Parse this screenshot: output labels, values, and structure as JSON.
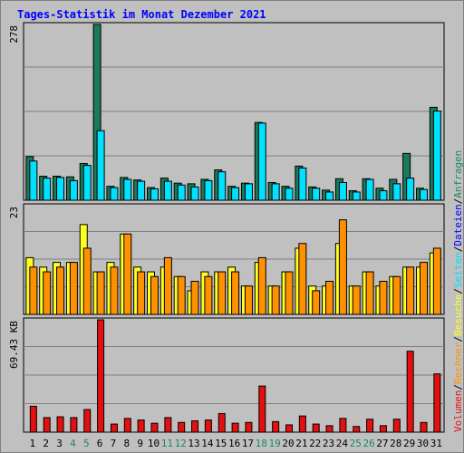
{
  "title": "Tages-Statistik im Monat Dezember 2021",
  "colors": {
    "background": "#c0c0c0",
    "panel": "#c0c0c0",
    "grid": "#808080",
    "hits": "#1b7a5a",
    "files": "#00e0ff",
    "visits": "#ffff20",
    "sites": "#ff9000",
    "kbytes": "#e41010",
    "title": "#0000ff",
    "weekend_label": "#1b8a5a",
    "weekday_label": "#000000"
  },
  "chart_data": [
    {
      "type": "bar",
      "name": "hits-files",
      "ymax_label": "278",
      "ylim": [
        0,
        278
      ],
      "categories": [
        "1",
        "2",
        "3",
        "4",
        "5",
        "6",
        "7",
        "8",
        "9",
        "10",
        "11",
        "12",
        "13",
        "14",
        "15",
        "16",
        "17",
        "18",
        "19",
        "20",
        "21",
        "22",
        "23",
        "24",
        "25",
        "26",
        "27",
        "28",
        "29",
        "30",
        "31"
      ],
      "weekend_days": [
        "4",
        "5",
        "11",
        "12",
        "18",
        "19",
        "25",
        "26"
      ],
      "series": [
        {
          "name": "Anfragen",
          "values": [
            69,
            38,
            38,
            37,
            58,
            278,
            22,
            36,
            32,
            20,
            35,
            27,
            26,
            33,
            48,
            22,
            27,
            123,
            28,
            22,
            54,
            21,
            16,
            34,
            15,
            34,
            19,
            33,
            74,
            19,
            147
          ]
        },
        {
          "name": "Dateien",
          "values": [
            62,
            35,
            36,
            31,
            55,
            110,
            20,
            33,
            30,
            18,
            30,
            24,
            21,
            31,
            45,
            20,
            26,
            122,
            26,
            19,
            51,
            19,
            13,
            28,
            13,
            33,
            15,
            26,
            35,
            17,
            141
          ]
        }
      ],
      "legend": [
        "Anfragen",
        "Dateien"
      ]
    },
    {
      "type": "bar",
      "name": "visits-sites",
      "ymax_label": "23",
      "ylim": [
        0,
        23
      ],
      "categories": [
        "1",
        "2",
        "3",
        "4",
        "5",
        "6",
        "7",
        "8",
        "9",
        "10",
        "11",
        "12",
        "13",
        "14",
        "15",
        "16",
        "17",
        "18",
        "19",
        "20",
        "21",
        "22",
        "23",
        "24",
        "25",
        "26",
        "27",
        "28",
        "29",
        "30",
        "31"
      ],
      "series": [
        {
          "name": "Besuche",
          "values": [
            12,
            10,
            11,
            11,
            19,
            9,
            11,
            17,
            10,
            9,
            10,
            8,
            5,
            9,
            9,
            10,
            6,
            11,
            6,
            9,
            14,
            6,
            6,
            15,
            6,
            9,
            6,
            8,
            10,
            10,
            13
          ]
        },
        {
          "name": "Seiten",
          "values": [
            10,
            9,
            10,
            11,
            14,
            9,
            10,
            17,
            9,
            8,
            12,
            8,
            7,
            8,
            9,
            9,
            6,
            12,
            6,
            9,
            15,
            5,
            7,
            20,
            6,
            9,
            7,
            8,
            10,
            11,
            14
          ]
        }
      ],
      "legend": [
        "Besuche",
        "Seiten"
      ]
    },
    {
      "type": "bar",
      "name": "kbytes",
      "ymax_label": "69.43 KB",
      "ylim": [
        0,
        69.43
      ],
      "categories": [
        "1",
        "2",
        "3",
        "4",
        "5",
        "6",
        "7",
        "8",
        "9",
        "10",
        "11",
        "12",
        "13",
        "14",
        "15",
        "16",
        "17",
        "18",
        "19",
        "20",
        "21",
        "22",
        "23",
        "24",
        "25",
        "26",
        "27",
        "28",
        "29",
        "30",
        "31"
      ],
      "series": [
        {
          "name": "Volumen",
          "values": [
            16,
            9,
            9.5,
            9,
            14,
            69.43,
            5,
            8.5,
            7.5,
            5.5,
            9,
            6,
            7,
            7.5,
            11.5,
            5.5,
            6,
            28.5,
            6.5,
            4.5,
            10,
            5,
            4,
            8.5,
            3.5,
            8,
            4,
            8,
            50,
            6,
            36
          ]
        }
      ],
      "legend": [
        "Volumen"
      ]
    }
  ],
  "right_legend": [
    {
      "text": "Volumen",
      "color": "#e41010"
    },
    {
      "text": "/",
      "color": "#000000"
    },
    {
      "text": "Rechner",
      "color": "#ff9000"
    },
    {
      "text": "/",
      "color": "#000000"
    },
    {
      "text": "Besuche",
      "color": "#ffff20"
    },
    {
      "text": "/",
      "color": "#000000"
    },
    {
      "text": "Seiten",
      "color": "#00e0ff"
    },
    {
      "text": "/",
      "color": "#000000"
    },
    {
      "text": "Dateien",
      "color": "#0000ff"
    },
    {
      "text": "/",
      "color": "#000000"
    },
    {
      "text": "Anfragen",
      "color": "#1b8a5a"
    }
  ]
}
